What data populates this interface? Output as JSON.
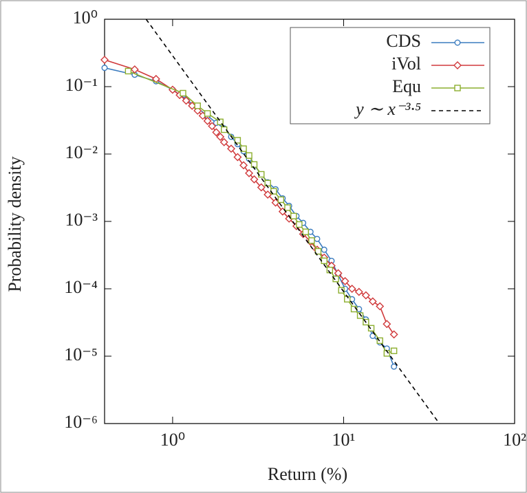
{
  "chart_data": {
    "type": "line",
    "xlabel": "Return (%)",
    "ylabel": "Probability density",
    "xscale": "log",
    "yscale": "log",
    "xlim": [
      0.4,
      100
    ],
    "ylim": [
      1e-06,
      1
    ],
    "xticks": [
      {
        "value": 1,
        "label": "10⁰"
      },
      {
        "value": 10,
        "label": "10¹"
      },
      {
        "value": 100,
        "label": "10²"
      }
    ],
    "yticks": [
      {
        "value": 1e-06,
        "label": "10⁻⁶"
      },
      {
        "value": 1e-05,
        "label": "10⁻⁵"
      },
      {
        "value": 0.0001,
        "label": "10⁻⁴"
      },
      {
        "value": 0.001,
        "label": "10⁻³"
      },
      {
        "value": 0.01,
        "label": "10⁻²"
      },
      {
        "value": 0.1,
        "label": "10⁻¹"
      },
      {
        "value": 1,
        "label": "10⁰"
      }
    ],
    "legend": "upper right",
    "series": [
      {
        "name": "CDS",
        "color": "#3a7bbf",
        "marker": "circle",
        "x": [
          0.4,
          0.6,
          0.8,
          1.0,
          1.2,
          1.4,
          1.6,
          1.8,
          2.0,
          2.2,
          2.4,
          2.6,
          2.8,
          3.0,
          3.3,
          3.6,
          4.0,
          4.4,
          4.8,
          5.3,
          5.8,
          6.4,
          7.0,
          7.7,
          8.5,
          9.3,
          10.2,
          11.2,
          12.3,
          13.5,
          14.8,
          16.3,
          17.9,
          19.7
        ],
        "values": [
          0.19,
          0.15,
          0.12,
          0.09,
          0.065,
          0.048,
          0.037,
          0.029,
          0.024,
          0.018,
          0.014,
          0.011,
          0.0085,
          0.0068,
          0.005,
          0.0038,
          0.003,
          0.0022,
          0.0017,
          0.0012,
          0.00095,
          0.0007,
          0.00055,
          0.00038,
          0.00026,
          0.00016,
          0.0001,
          7e-05,
          5e-05,
          3.5e-05,
          2e-05,
          1.6e-05,
          1.3e-05,
          7e-06
        ]
      },
      {
        "name": "iVol",
        "color": "#d0393b",
        "marker": "diamond",
        "x": [
          0.4,
          0.6,
          0.8,
          1.0,
          1.1,
          1.2,
          1.3,
          1.4,
          1.5,
          1.6,
          1.7,
          1.8,
          1.9,
          2.0,
          2.2,
          2.4,
          2.6,
          2.8,
          3.0,
          3.3,
          3.6,
          4.0,
          4.4,
          4.8,
          5.3,
          5.8,
          6.4,
          7.0,
          7.7,
          8.5,
          9.3,
          10.2,
          11.2,
          12.3,
          13.5,
          14.8,
          16.3,
          17.9,
          19.7
        ],
        "values": [
          0.25,
          0.18,
          0.13,
          0.09,
          0.075,
          0.062,
          0.052,
          0.044,
          0.037,
          0.031,
          0.026,
          0.021,
          0.018,
          0.015,
          0.012,
          0.009,
          0.0068,
          0.0052,
          0.0042,
          0.0032,
          0.0025,
          0.0019,
          0.0014,
          0.0011,
          0.00085,
          0.00065,
          0.0005,
          0.00038,
          0.00029,
          0.00022,
          0.00017,
          0.00013,
          0.0001,
          9e-05,
          8e-05,
          6.5e-05,
          5.5e-05,
          3e-05,
          2.1e-05
        ]
      },
      {
        "name": "Equ",
        "color": "#8cae2e",
        "marker": "square",
        "x": [
          0.55,
          1.15,
          1.4,
          1.6,
          1.9,
          2.0,
          2.4,
          2.6,
          2.8,
          3.0,
          3.3,
          3.6,
          3.9,
          4.3,
          4.7,
          5.1,
          5.5,
          6.0,
          6.5,
          7.1,
          7.7,
          8.3,
          9.0,
          9.7,
          10.5,
          11.5,
          12.5,
          13.5,
          14.5,
          16.3,
          17.9,
          19.7
        ],
        "values": [
          0.17,
          0.08,
          0.052,
          0.04,
          0.03,
          0.023,
          0.016,
          0.012,
          0.0095,
          0.007,
          0.005,
          0.0037,
          0.0028,
          0.0021,
          0.0016,
          0.0012,
          0.0009,
          0.0007,
          0.00052,
          0.00036,
          0.00026,
          0.00019,
          0.00014,
          9.5e-05,
          7e-05,
          5e-05,
          4e-05,
          3.2e-05,
          2.6e-05,
          1.7e-05,
          1.1e-05,
          1.2e-05
        ]
      },
      {
        "name": "y ∼ x⁻³·⁵",
        "color": "#000000",
        "dashed": true,
        "x": [
          0.7,
          36.3
        ],
        "values": [
          1,
          1e-06
        ]
      }
    ]
  }
}
